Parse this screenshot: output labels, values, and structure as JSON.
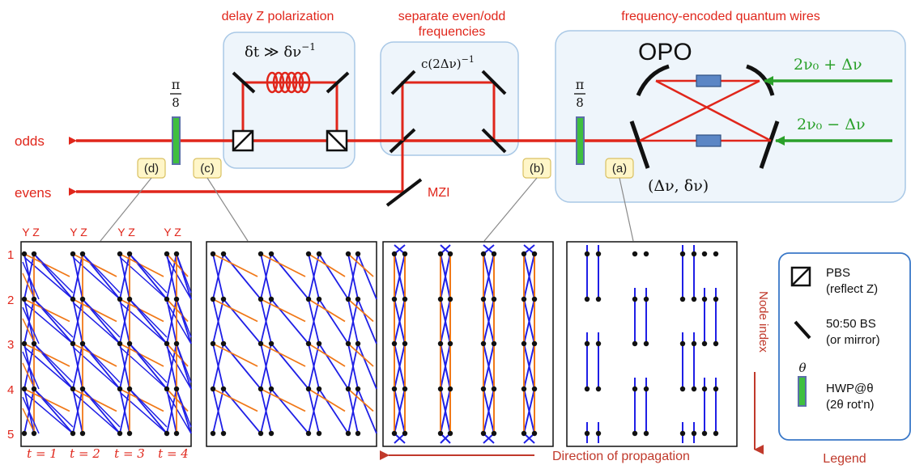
{
  "sections": {
    "delay": "delay Z polarization",
    "separate_line1": "separate even/odd",
    "separate_line2": "frequencies",
    "wires": "frequency-encoded quantum wires"
  },
  "optics": {
    "delay_expr": "δt ≫ δν",
    "delay_exp": "−1",
    "mzi_delay": "c(2Δν)",
    "mzi_exp": "−1",
    "opo": "OPO",
    "pump_top": "2ν₀ + Δν",
    "pump_bottom": "2ν₀ − Δν",
    "opo_params": "(Δν, δν)",
    "hwp_num": "π",
    "hwp_den": "8",
    "mzi": "MZI"
  },
  "outputs": {
    "odds": "odds",
    "evens": "evens"
  },
  "badges": [
    "(d)",
    "(c)",
    "(b)",
    "(a)"
  ],
  "panels": {
    "yz": [
      "Y Z",
      "Y Z",
      "Y Z",
      "Y Z"
    ],
    "node_labels": [
      "1",
      "2",
      "3",
      "4",
      "5"
    ],
    "time_labels": [
      "t = 1",
      "t = 2",
      "t = 3",
      "t = 4"
    ],
    "node_index": "Node index",
    "direction": "Direction of propagation"
  },
  "legend": {
    "title": "Legend",
    "pbs_line1": "PBS",
    "pbs_line2": "(reflect Z)",
    "bs_line1": "50:50 BS",
    "bs_line2": "(or mirror)",
    "theta": "θ",
    "hwp_line1": "HWP@θ",
    "hwp_line2": "(2θ rot'n)"
  },
  "colors": {
    "beam": "#e0261b",
    "pump": "#2aa02a",
    "edge_blue": "#1f1fe6",
    "edge_orange": "#f07818",
    "box": "#a9c8e6",
    "box_fill": "#eef5fb",
    "badge_fill": "#fff6c8",
    "hwp": "#3fbf3f",
    "crystal": "#5b86c5"
  }
}
